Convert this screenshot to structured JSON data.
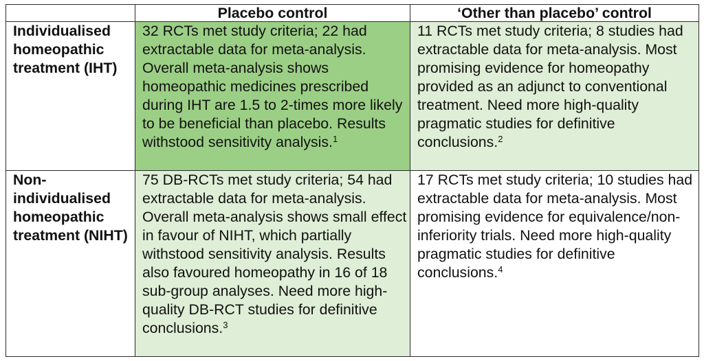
{
  "table": {
    "headers": [
      "",
      "Placebo control",
      "‘Other than placebo’ control"
    ],
    "rows": [
      {
        "label": "Individualised homeopathic treatment (IHT)",
        "placebo": {
          "text": "32 RCTs met study criteria; 22 had extractable data for meta-analysis. Overall meta-analysis shows homeopathic medicines prescribed during IHT are 1.5 to 2-times more likely to be beneficial than placebo. Results withstood sensitivity analysis.",
          "ref": "1"
        },
        "other": {
          "text": "11 RCTs met study criteria; 8 studies had extractable data for meta-analysis. Most promising evidence for homeopathy provided as an adjunct to conventional treatment. Need more high-quality pragmatic studies for definitive conclusions.",
          "ref": "2"
        }
      },
      {
        "label": "Non-individualised homeopathic treatment (NIHT)",
        "placebo": {
          "text": "75 DB-RCTs met study criteria; 54 had extractable data for meta-analysis. Overall meta-analysis shows small effect in favour of NIHT, which partially withstood sensitivity analysis. Results also favoured homeopathy in 16 of 18 sub-group analyses. Need more high-quality DB-RCT studies for definitive conclusions.",
          "ref": "3"
        },
        "other": {
          "text": "17 RCTs met study criteria; 10 studies had extractable data for meta-analysis. Most promising evidence for equivalence/non-inferiority trials. Need more high-quality pragmatic studies for definitive conclusions.",
          "ref": "4"
        }
      }
    ]
  },
  "colors": {
    "dark_green": "#9ccf86",
    "light_green": "#dfeed6",
    "white": "#ffffff",
    "border": "#2a2a2a"
  }
}
